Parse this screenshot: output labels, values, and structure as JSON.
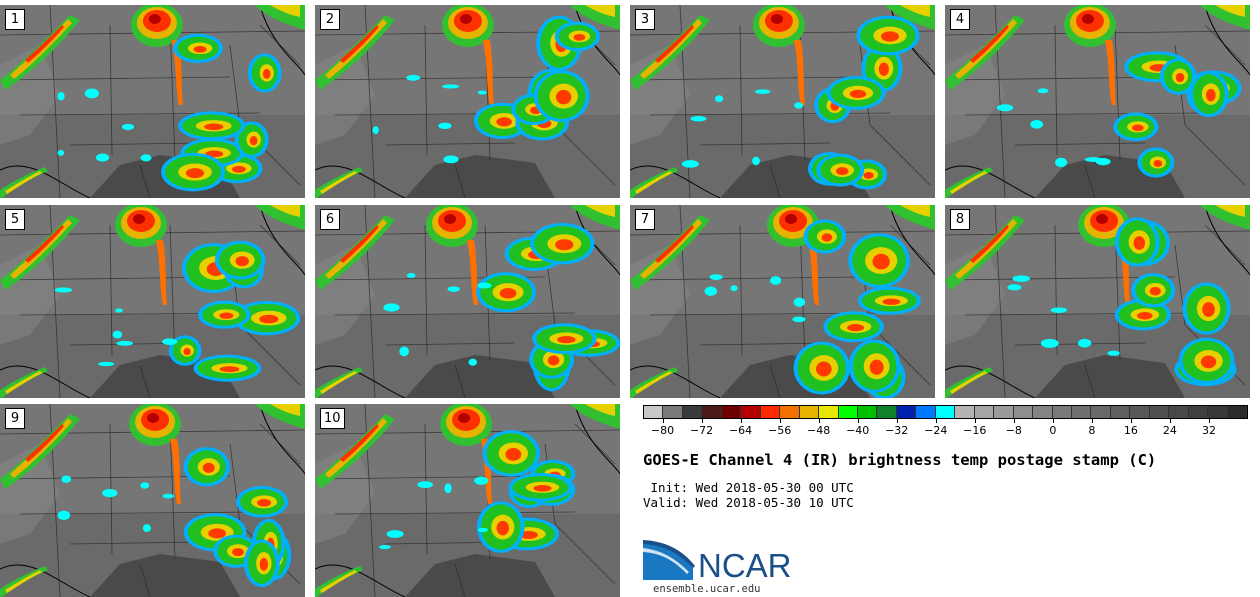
{
  "figure": {
    "title": "GOES-E Channel 4 (IR) brightness temp postage stamp (C)",
    "init": " Init: Wed 2018-05-30 00 UTC",
    "valid": "Valid: Wed 2018-05-30 10 UTC",
    "logo_text": "NCAR",
    "url": "ensemble.ucar.edu"
  },
  "panels": [
    {
      "label": "1"
    },
    {
      "label": "2"
    },
    {
      "label": "3"
    },
    {
      "label": "4"
    },
    {
      "label": "5"
    },
    {
      "label": "6"
    },
    {
      "label": "7"
    },
    {
      "label": "8"
    },
    {
      "label": "9"
    },
    {
      "label": "10"
    }
  ],
  "colorbar": {
    "colors": [
      "#c8c8c8",
      "#7a7a7a",
      "#3a3a3a",
      "#4a1a1a",
      "#6e0000",
      "#b40000",
      "#ff2a00",
      "#f07000",
      "#e6b400",
      "#e6e600",
      "#00ff00",
      "#00c000",
      "#10802a",
      "#0020b0",
      "#0078ff",
      "#00ffff",
      "#b4b4b4",
      "#a6a6a6",
      "#9a9a9a",
      "#8e8e8e",
      "#848484",
      "#7a7a7a",
      "#707070",
      "#686868",
      "#606060",
      "#585858",
      "#505050",
      "#484848",
      "#404040",
      "#383838",
      "#2a2a2a"
    ],
    "ticks": [
      "−80",
      "−72",
      "−64",
      "−56",
      "−48",
      "−40",
      "−32",
      "−24",
      "−16",
      "−8",
      "0",
      "8",
      "16",
      "24",
      "32"
    ],
    "tick_values": [
      -80,
      -72,
      -64,
      -56,
      -48,
      -40,
      -32,
      -24,
      -16,
      -8,
      0,
      8,
      16,
      24,
      32
    ],
    "min": -84,
    "max": 40
  }
}
